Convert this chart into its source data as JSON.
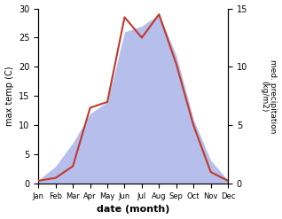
{
  "months": [
    "Jan",
    "Feb",
    "Mar",
    "Apr",
    "May",
    "Jun",
    "Jul",
    "Aug",
    "Sep",
    "Oct",
    "Nov",
    "Dec"
  ],
  "temperature": [
    0.5,
    1.0,
    3.0,
    13.0,
    14.0,
    28.5,
    25.0,
    29.0,
    20.5,
    10.0,
    2.0,
    0.5
  ],
  "precipitation": [
    0.3,
    1.5,
    3.5,
    6.0,
    7.0,
    13.0,
    13.5,
    14.5,
    11.0,
    5.5,
    2.0,
    0.3
  ],
  "temp_color": "#c0392b",
  "precip_fill_color": "#aab4e8",
  "temp_ylim": [
    0,
    30
  ],
  "precip_ylim": [
    0,
    15
  ],
  "xlabel": "date (month)",
  "ylabel_left": "max temp (C)",
  "ylabel_right": "med. precipitation\n(kg/m2)",
  "temp_yticks": [
    0,
    5,
    10,
    15,
    20,
    25,
    30
  ],
  "precip_yticks": [
    0,
    5,
    10,
    15
  ],
  "background_color": "#ffffff"
}
